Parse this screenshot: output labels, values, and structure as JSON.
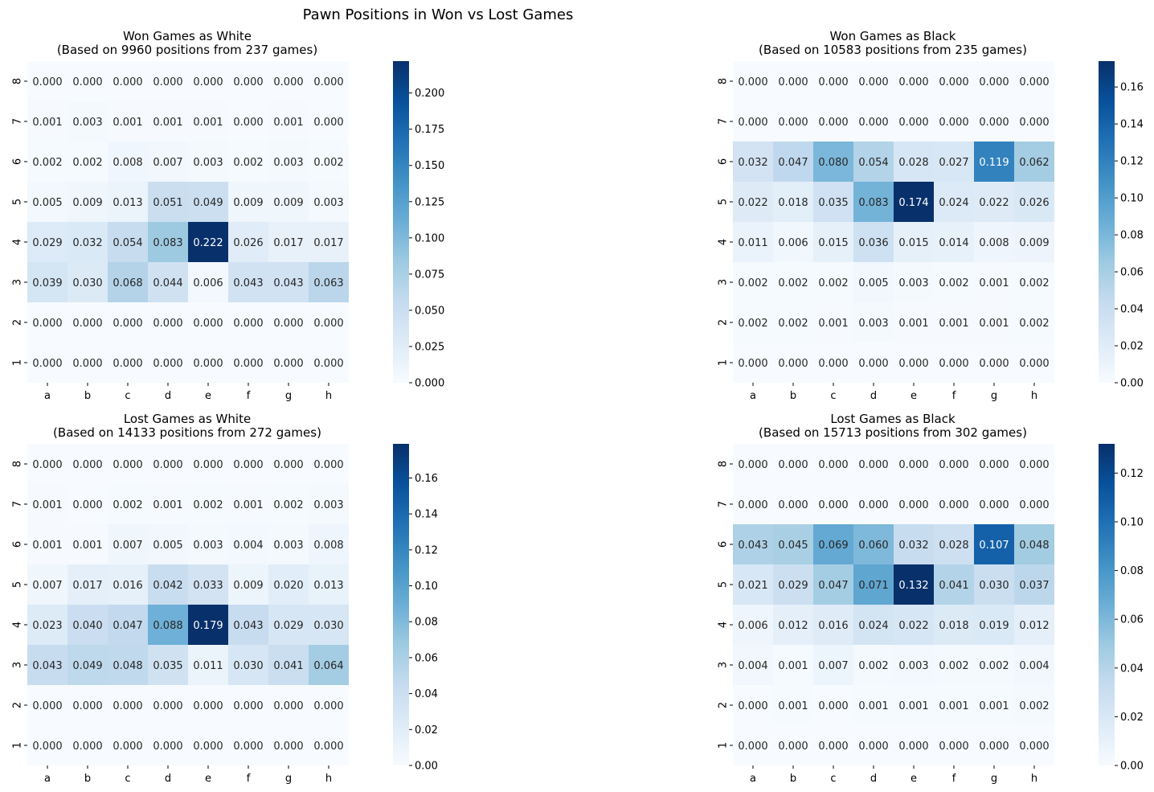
{
  "figure_title": "Pawn Positions in Won vs Lost Games",
  "colormap": "Blues",
  "colormap_stops": [
    "#f7fbff",
    "#deebf7",
    "#c6dbef",
    "#9ecae1",
    "#6baed6",
    "#4292c6",
    "#2171b5",
    "#08519c",
    "#08306b"
  ],
  "chart_data": [
    {
      "type": "heatmap",
      "title": "Won Games as White\n(Based on 9960 positions from 237 games)",
      "x_categories": [
        "a",
        "b",
        "c",
        "d",
        "e",
        "f",
        "g",
        "h"
      ],
      "y_categories": [
        "8",
        "7",
        "6",
        "5",
        "4",
        "3",
        "2",
        "1"
      ],
      "vmin": 0,
      "vmax": 0.222,
      "colorbar_ticks": [
        "0.000",
        "0.025",
        "0.050",
        "0.075",
        "0.100",
        "0.125",
        "0.150",
        "0.175",
        "0.200"
      ],
      "values": [
        [
          0.0,
          0.0,
          0.0,
          0.0,
          0.0,
          0.0,
          0.0,
          0.0
        ],
        [
          0.001,
          0.003,
          0.001,
          0.001,
          0.001,
          0.0,
          0.001,
          0.0
        ],
        [
          0.002,
          0.002,
          0.008,
          0.007,
          0.003,
          0.002,
          0.003,
          0.002
        ],
        [
          0.005,
          0.009,
          0.013,
          0.051,
          0.049,
          0.009,
          0.009,
          0.003
        ],
        [
          0.029,
          0.032,
          0.054,
          0.083,
          0.222,
          0.026,
          0.017,
          0.017
        ],
        [
          0.039,
          0.03,
          0.068,
          0.044,
          0.006,
          0.043,
          0.043,
          0.063
        ],
        [
          0.0,
          0.0,
          0.0,
          0.0,
          0.0,
          0.0,
          0.0,
          0.0
        ],
        [
          0.0,
          0.0,
          0.0,
          0.0,
          0.0,
          0.0,
          0.0,
          0.0
        ]
      ]
    },
    {
      "type": "heatmap",
      "title": "Won Games as Black\n(Based on 10583 positions from 235 games)",
      "x_categories": [
        "a",
        "b",
        "c",
        "d",
        "e",
        "f",
        "g",
        "h"
      ],
      "y_categories": [
        "8",
        "7",
        "6",
        "5",
        "4",
        "3",
        "2",
        "1"
      ],
      "vmin": 0,
      "vmax": 0.174,
      "colorbar_ticks": [
        "0.00",
        "0.02",
        "0.04",
        "0.06",
        "0.08",
        "0.10",
        "0.12",
        "0.14",
        "0.16"
      ],
      "values": [
        [
          0.0,
          0.0,
          0.0,
          0.0,
          0.0,
          0.0,
          0.0,
          0.0
        ],
        [
          0.0,
          0.0,
          0.0,
          0.0,
          0.0,
          0.0,
          0.0,
          0.0
        ],
        [
          0.032,
          0.047,
          0.08,
          0.054,
          0.028,
          0.027,
          0.119,
          0.062
        ],
        [
          0.022,
          0.018,
          0.035,
          0.083,
          0.174,
          0.024,
          0.022,
          0.026
        ],
        [
          0.011,
          0.006,
          0.015,
          0.036,
          0.015,
          0.014,
          0.008,
          0.009
        ],
        [
          0.002,
          0.002,
          0.002,
          0.005,
          0.003,
          0.002,
          0.001,
          0.002
        ],
        [
          0.002,
          0.002,
          0.001,
          0.003,
          0.001,
          0.001,
          0.001,
          0.002
        ],
        [
          0.0,
          0.0,
          0.0,
          0.0,
          0.0,
          0.0,
          0.0,
          0.0
        ]
      ]
    },
    {
      "type": "heatmap",
      "title": "Lost Games as White\n(Based on 14133 positions from 272 games)",
      "x_categories": [
        "a",
        "b",
        "c",
        "d",
        "e",
        "f",
        "g",
        "h"
      ],
      "y_categories": [
        "8",
        "7",
        "6",
        "5",
        "4",
        "3",
        "2",
        "1"
      ],
      "vmin": 0,
      "vmax": 0.179,
      "colorbar_ticks": [
        "0.00",
        "0.02",
        "0.04",
        "0.06",
        "0.08",
        "0.10",
        "0.12",
        "0.14",
        "0.16"
      ],
      "values": [
        [
          0.0,
          0.0,
          0.0,
          0.0,
          0.0,
          0.0,
          0.0,
          0.0
        ],
        [
          0.001,
          0.0,
          0.002,
          0.001,
          0.002,
          0.001,
          0.002,
          0.003
        ],
        [
          0.001,
          0.001,
          0.007,
          0.005,
          0.003,
          0.004,
          0.003,
          0.008
        ],
        [
          0.007,
          0.017,
          0.016,
          0.042,
          0.033,
          0.009,
          0.02,
          0.013
        ],
        [
          0.023,
          0.04,
          0.047,
          0.088,
          0.179,
          0.043,
          0.029,
          0.03
        ],
        [
          0.043,
          0.049,
          0.048,
          0.035,
          0.011,
          0.03,
          0.041,
          0.064
        ],
        [
          0.0,
          0.0,
          0.0,
          0.0,
          0.0,
          0.0,
          0.0,
          0.0
        ],
        [
          0.0,
          0.0,
          0.0,
          0.0,
          0.0,
          0.0,
          0.0,
          0.0
        ]
      ]
    },
    {
      "type": "heatmap",
      "title": "Lost Games as Black\n(Based on 15713 positions from 302 games)",
      "x_categories": [
        "a",
        "b",
        "c",
        "d",
        "e",
        "f",
        "g",
        "h"
      ],
      "y_categories": [
        "8",
        "7",
        "6",
        "5",
        "4",
        "3",
        "2",
        "1"
      ],
      "vmin": 0,
      "vmax": 0.132,
      "colorbar_ticks": [
        "0.00",
        "0.02",
        "0.04",
        "0.06",
        "0.08",
        "0.10",
        "0.12"
      ],
      "values": [
        [
          0.0,
          0.0,
          0.0,
          0.0,
          0.0,
          0.0,
          0.0,
          0.0
        ],
        [
          0.0,
          0.0,
          0.0,
          0.0,
          0.0,
          0.0,
          0.0,
          0.0
        ],
        [
          0.043,
          0.045,
          0.069,
          0.06,
          0.032,
          0.028,
          0.107,
          0.048
        ],
        [
          0.021,
          0.029,
          0.047,
          0.071,
          0.132,
          0.041,
          0.03,
          0.037
        ],
        [
          0.006,
          0.012,
          0.016,
          0.024,
          0.022,
          0.018,
          0.019,
          0.012
        ],
        [
          0.004,
          0.001,
          0.007,
          0.002,
          0.003,
          0.002,
          0.002,
          0.004
        ],
        [
          0.0,
          0.001,
          0.0,
          0.001,
          0.001,
          0.001,
          0.001,
          0.002
        ],
        [
          0.0,
          0.0,
          0.0,
          0.0,
          0.0,
          0.0,
          0.0,
          0.0
        ]
      ]
    }
  ]
}
